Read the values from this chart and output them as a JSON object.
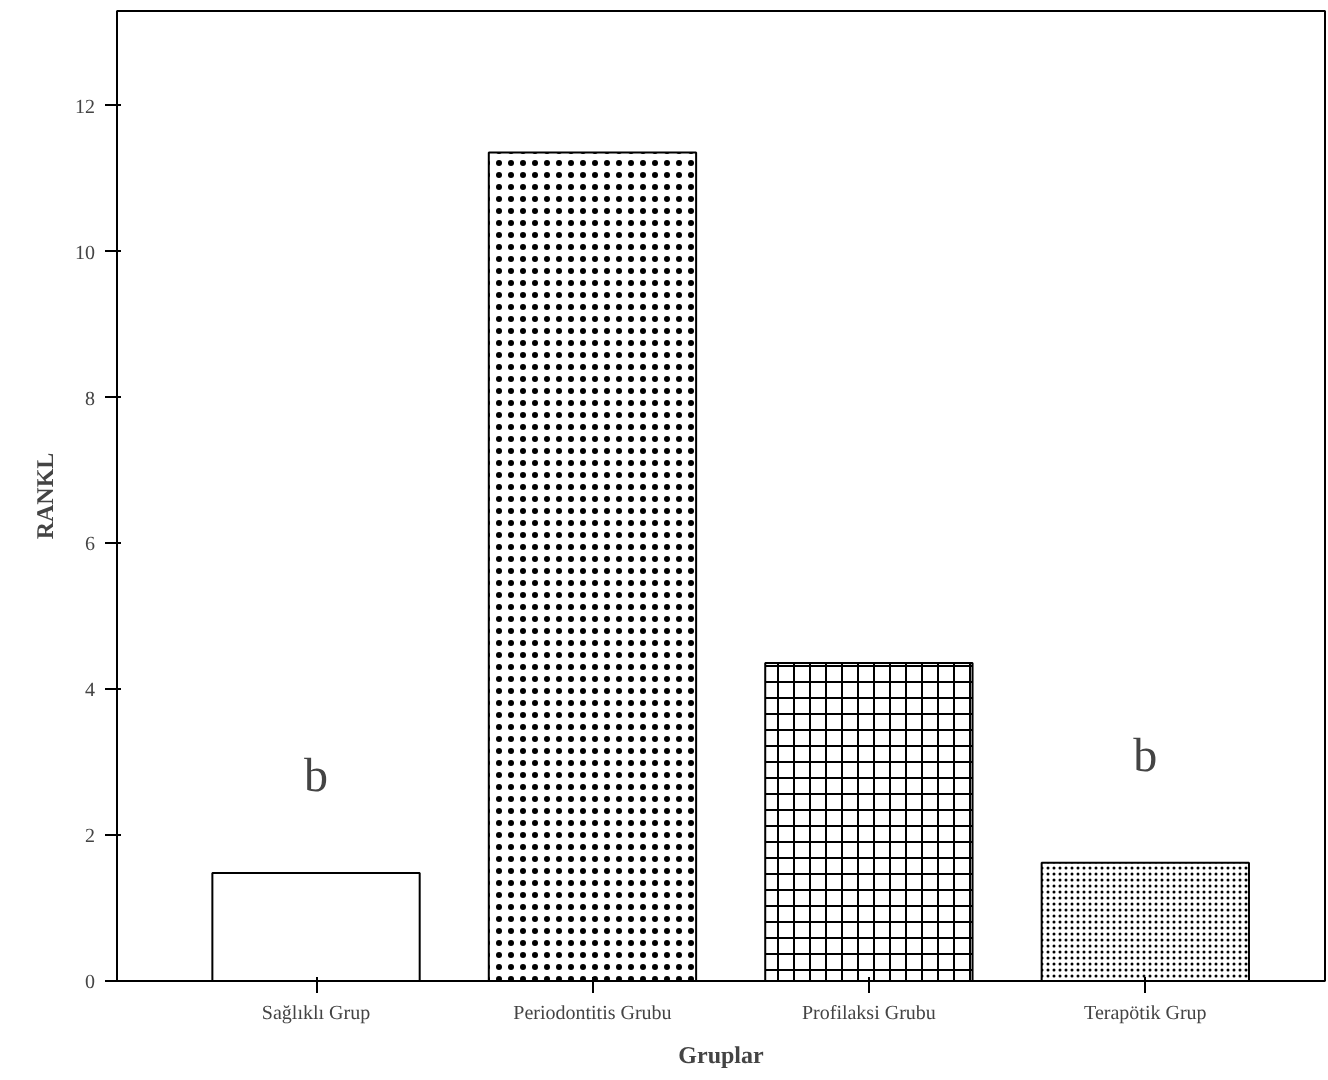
{
  "chart_data": {
    "type": "bar",
    "xlabel": "Gruplar",
    "ylabel": "RANKL",
    "categories": [
      "Sağlıklı Grup",
      "Periodontitis Grubu",
      "Profilaksi Grubu",
      "Terapötik Grup"
    ],
    "values": [
      1.48,
      11.36,
      4.36,
      1.62
    ],
    "color": "#ffffff",
    "ylim": [
      0,
      13.3
    ],
    "yticks": [
      0,
      2,
      4,
      6,
      8,
      10,
      12
    ],
    "grid": false,
    "annotations": [
      "b",
      "b"
    ]
  }
}
